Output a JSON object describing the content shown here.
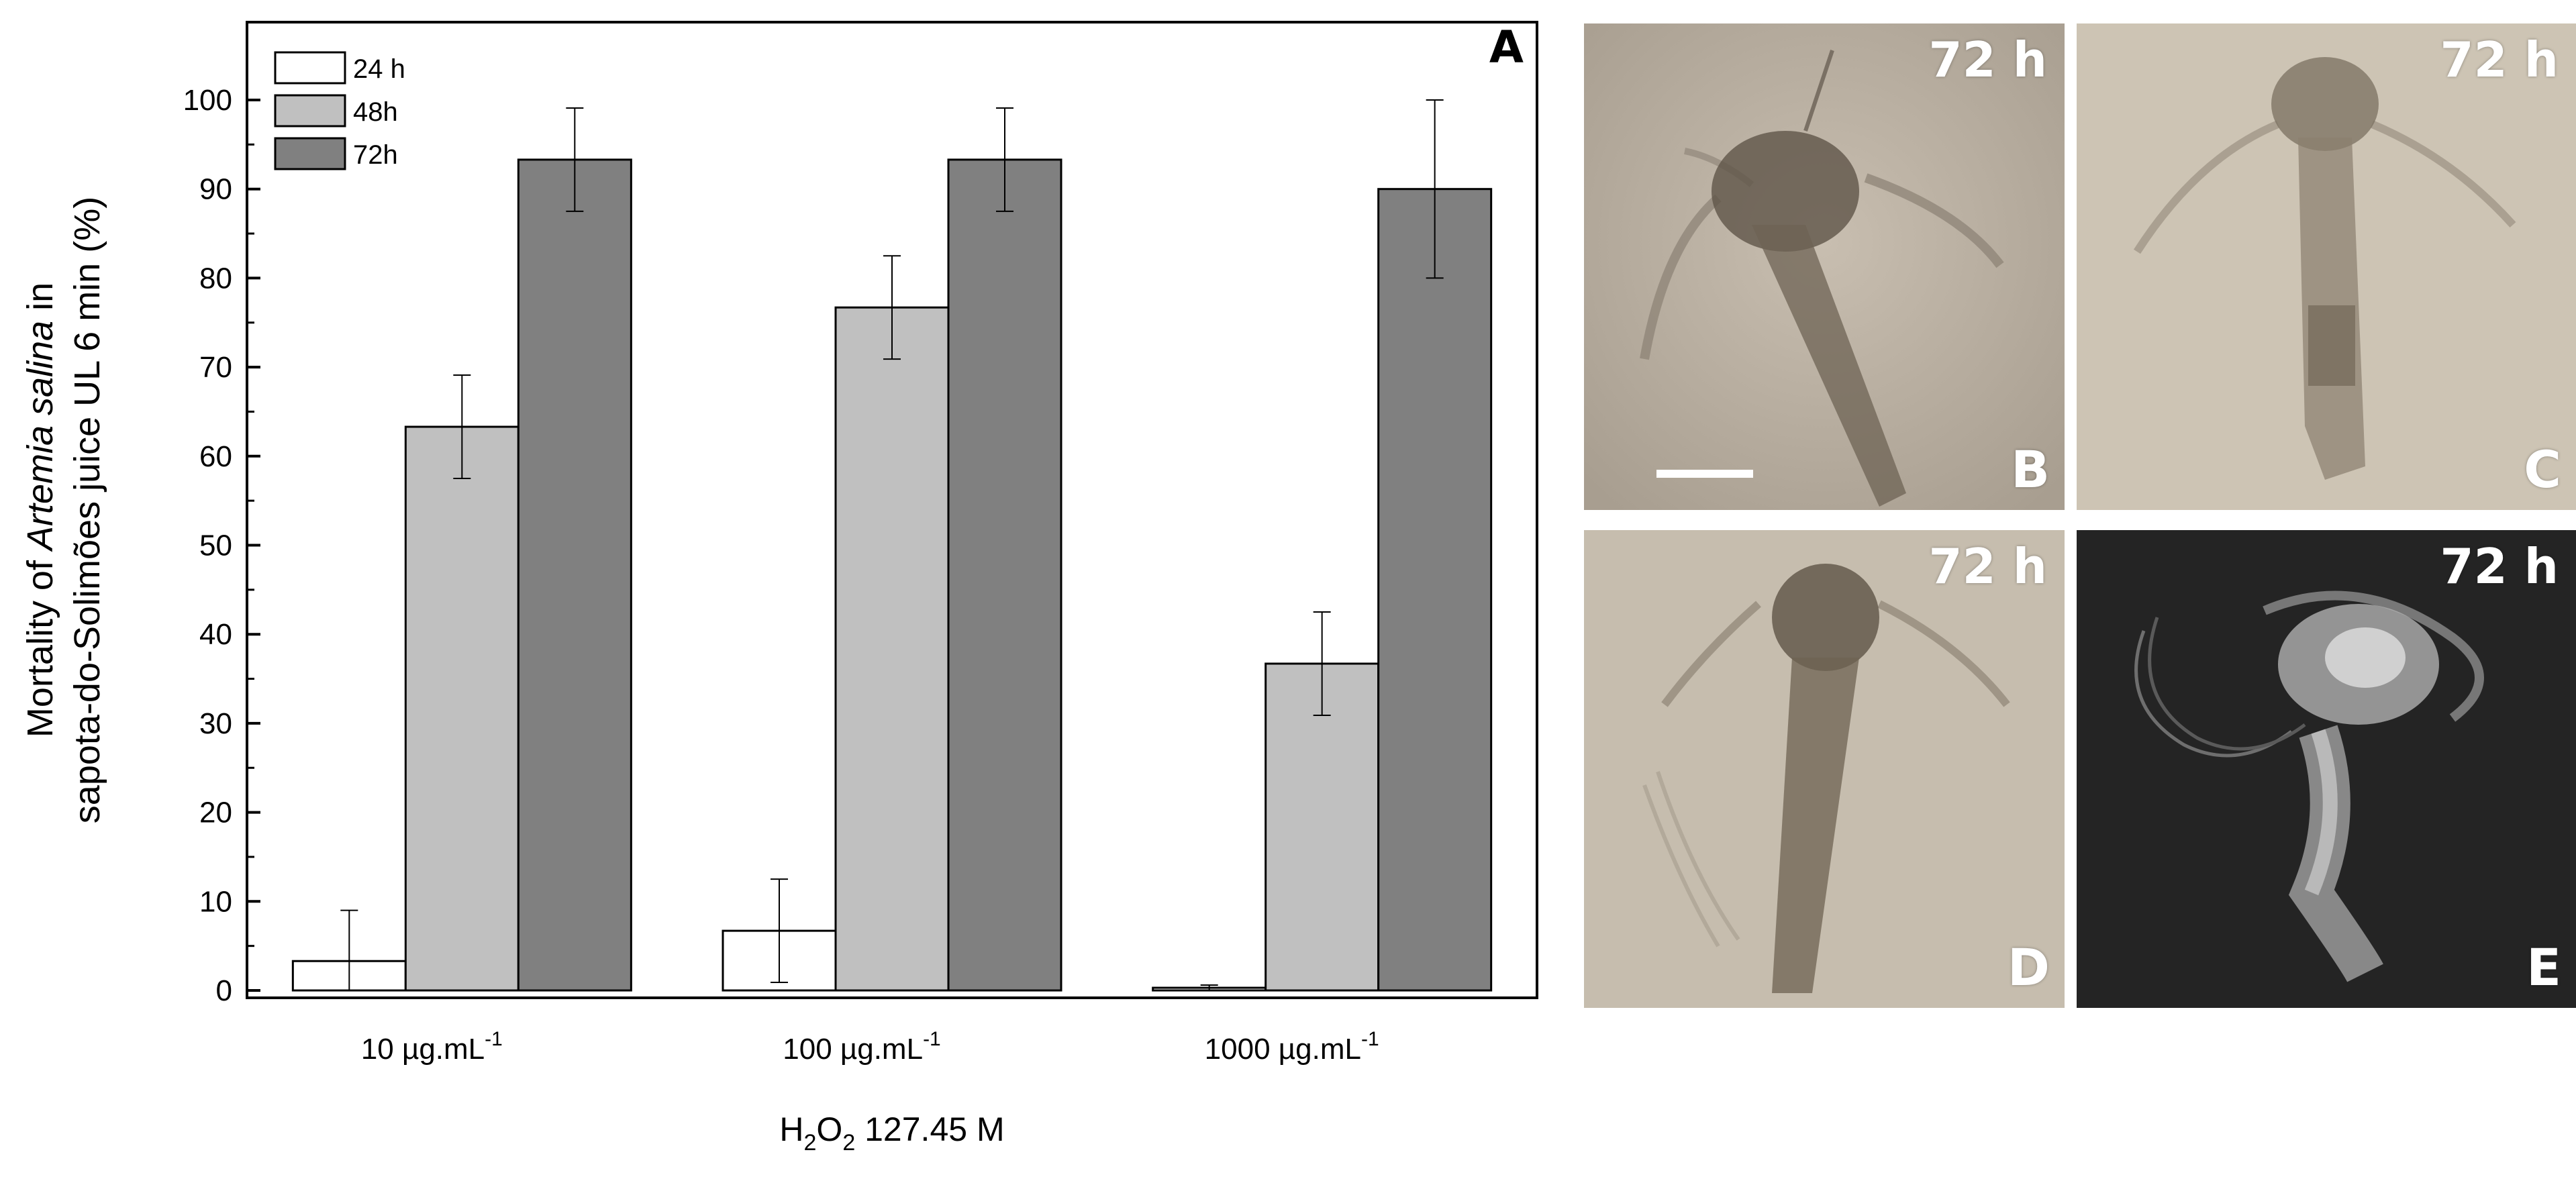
{
  "chart_data": {
    "type": "bar",
    "panel_label": "A",
    "categories": [
      "10 µg.mL",
      "100 µg.mL",
      "1000 µg.mL"
    ],
    "category_superscript": "-1",
    "ylabel_line1_prefix": "Mortality of ",
    "ylabel_line1_italic": "Artemia salina",
    "ylabel_line1_suffix": " in",
    "ylabel_line2": "sapota-do-Solimões juice UL 6 min (%)",
    "xlabel_parts": [
      "H",
      "2",
      "O",
      "2",
      " 127.45 M"
    ],
    "ylim": [
      0,
      100
    ],
    "yticks": [
      0,
      10,
      20,
      30,
      40,
      50,
      60,
      70,
      80,
      90,
      100
    ],
    "series": [
      {
        "name": "24 h",
        "color": "#ffffff",
        "values": [
          3.3,
          6.7,
          0.3
        ],
        "errors": [
          5.7,
          5.8,
          0.3
        ]
      },
      {
        "name": "48h",
        "color": "#c0c0c0",
        "values": [
          63.3,
          76.7,
          36.7
        ],
        "errors": [
          5.8,
          5.8,
          5.8
        ]
      },
      {
        "name": "72h",
        "color": "#808080",
        "values": [
          93.3,
          93.3,
          90.0
        ],
        "errors": [
          5.8,
          5.8,
          10.0
        ]
      }
    ],
    "legend_position": "top-left",
    "grid": false
  },
  "micrographs": [
    {
      "time_label": "72 h",
      "panel_letter": "B",
      "scale_bar": true
    },
    {
      "time_label": "72 h",
      "panel_letter": "C"
    },
    {
      "time_label": "72 h",
      "panel_letter": "D"
    },
    {
      "time_label": "72 h",
      "panel_letter": "E"
    }
  ]
}
